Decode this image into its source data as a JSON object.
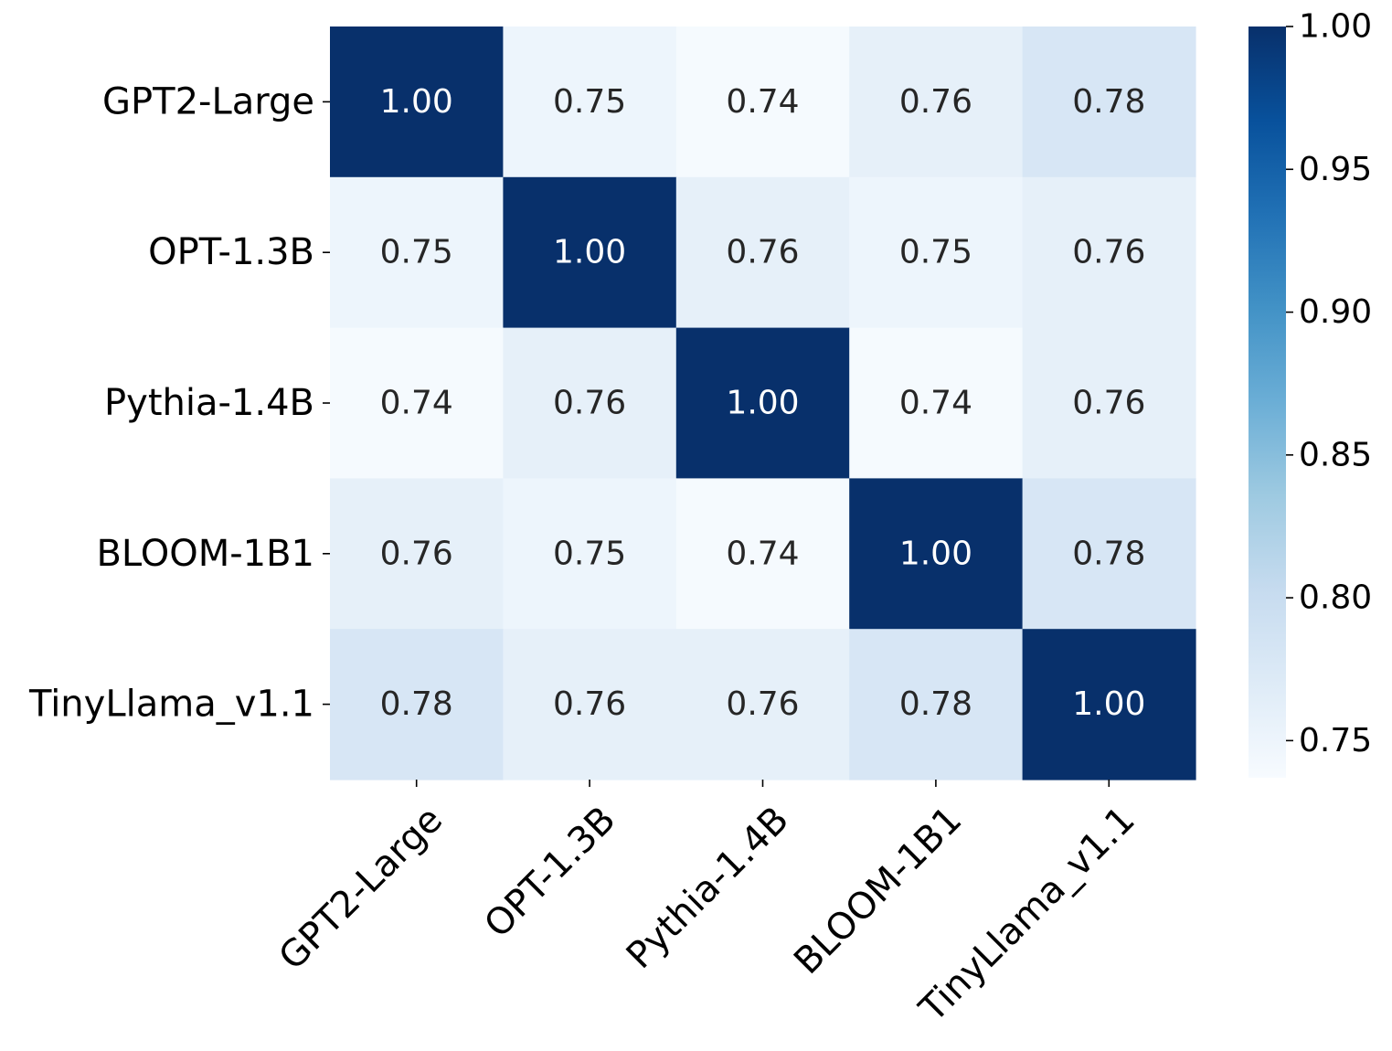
{
  "chart_data": {
    "type": "heatmap",
    "title": "",
    "xlabel": "",
    "ylabel": "",
    "x_categories": [
      "GPT2-Large",
      "OPT-1.3B",
      "Pythia-1.4B",
      "BLOOM-1B1",
      "TinyLlama_v1.1"
    ],
    "y_categories": [
      "GPT2-Large",
      "OPT-1.3B",
      "Pythia-1.4B",
      "BLOOM-1B1",
      "TinyLlama_v1.1"
    ],
    "values": [
      [
        1.0,
        0.75,
        0.74,
        0.76,
        0.78
      ],
      [
        0.75,
        1.0,
        0.76,
        0.75,
        0.76
      ],
      [
        0.74,
        0.76,
        1.0,
        0.74,
        0.76
      ],
      [
        0.76,
        0.75,
        0.74,
        1.0,
        0.78
      ],
      [
        0.78,
        0.76,
        0.76,
        0.78,
        1.0
      ]
    ],
    "value_labels": [
      [
        "1.00",
        "0.75",
        "0.74",
        "0.76",
        "0.78"
      ],
      [
        "0.75",
        "1.00",
        "0.76",
        "0.75",
        "0.76"
      ],
      [
        "0.74",
        "0.76",
        "1.00",
        "0.74",
        "0.76"
      ],
      [
        "0.76",
        "0.75",
        "0.74",
        "1.00",
        "0.78"
      ],
      [
        "0.78",
        "0.76",
        "0.76",
        "0.78",
        "1.00"
      ]
    ],
    "colormap": "Blues",
    "colorbar": {
      "vmin": 0.737,
      "vmax": 1.0,
      "ticks": [
        0.75,
        0.8,
        0.85,
        0.9,
        0.95,
        1.0
      ],
      "tick_labels": [
        "0.75",
        "0.80",
        "0.85",
        "0.90",
        "0.95",
        "1.00"
      ]
    },
    "x_tick_rotation": 45,
    "grid": false,
    "legend": "colorbar-right"
  },
  "colors": {
    "blues_stops": [
      "#f7fbff",
      "#deebf7",
      "#c6dbef",
      "#9ecae1",
      "#6baed6",
      "#4292c6",
      "#2171b5",
      "#08519c",
      "#08306b"
    ],
    "dark_text": "#262626",
    "light_text": "#ffffff",
    "axis": "#000000"
  }
}
